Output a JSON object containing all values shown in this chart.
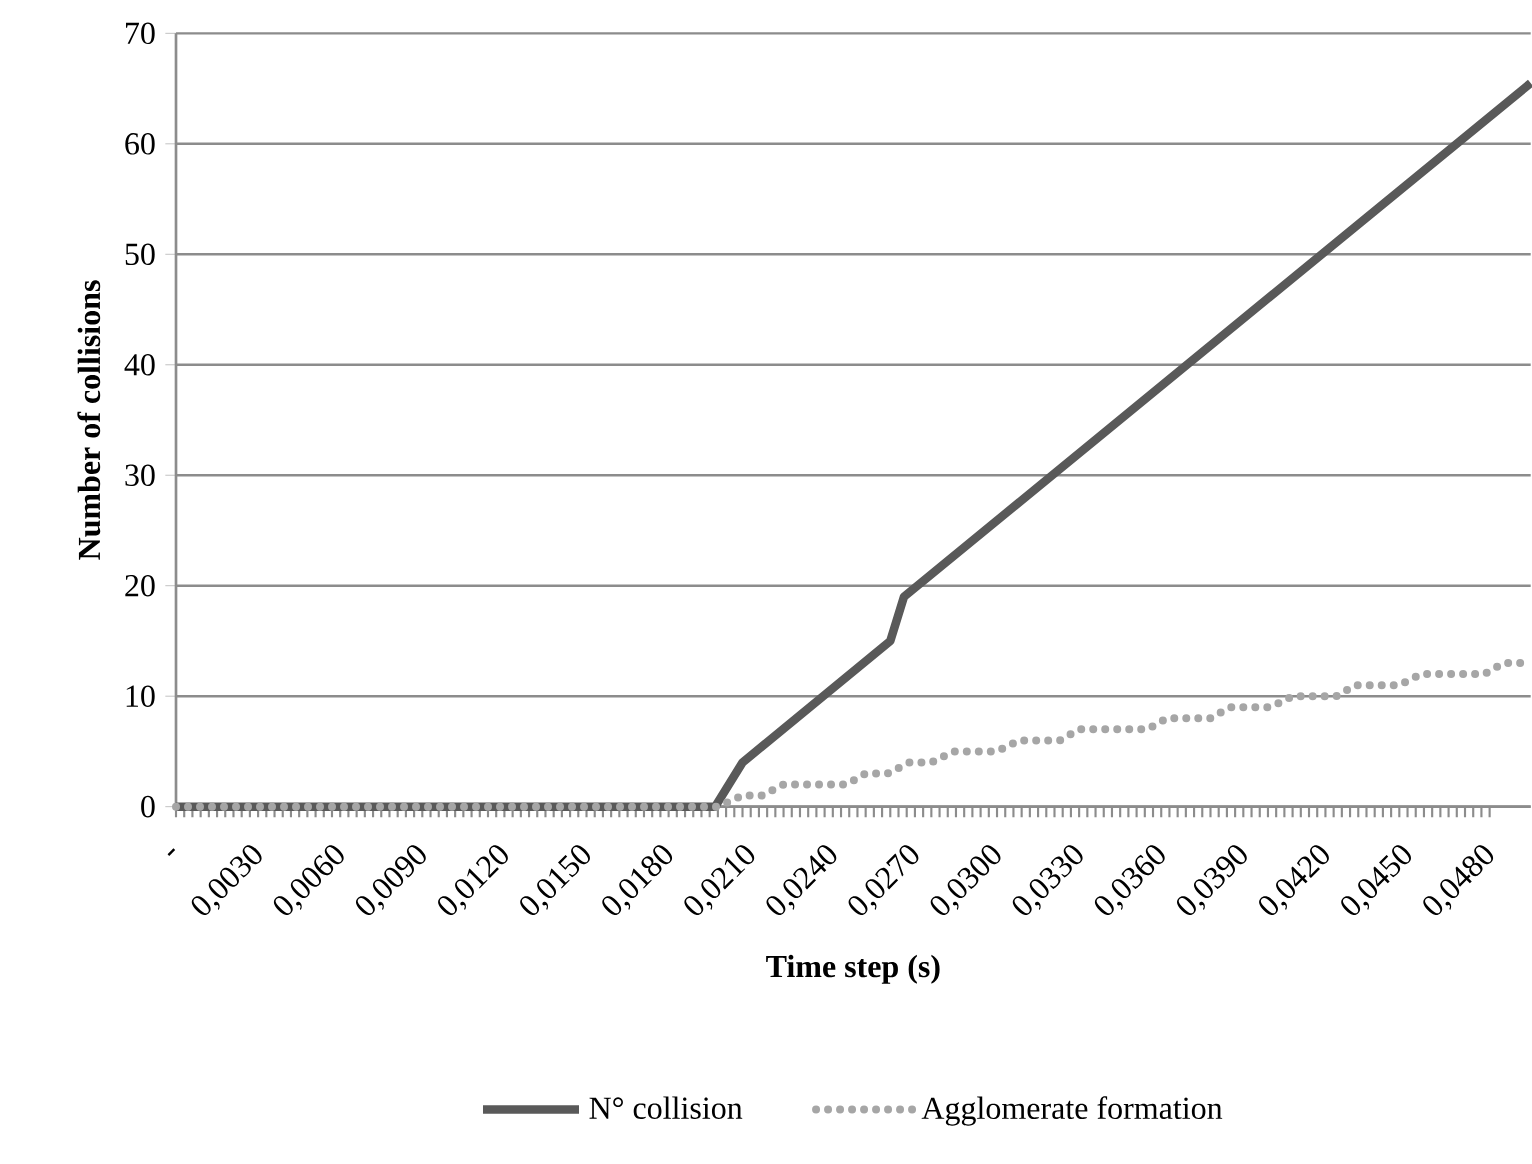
{
  "chart_data": {
    "type": "line",
    "xlabel": "Time step (s)",
    "ylabel": "Number of collisions",
    "series": [
      {
        "name": "N° collision",
        "color": "#595959",
        "line_style": "solid",
        "x": [
          0,
          0.0197,
          0.0207,
          0.0261,
          0.0266,
          0.0495
        ],
        "values": [
          0,
          0,
          4,
          15,
          19,
          65.5
        ]
      },
      {
        "name": "Agglomerate formation",
        "color": "#a6a6a6",
        "line_style": "dotted",
        "x": [
          0,
          0.0198,
          0.0207,
          0.0214,
          0.0222,
          0.0245,
          0.0252,
          0.026,
          0.0268,
          0.0276,
          0.0284,
          0.03,
          0.0308,
          0.0323,
          0.033,
          0.0355,
          0.0362,
          0.0378,
          0.0385,
          0.04,
          0.0408,
          0.0424,
          0.0431,
          0.0447,
          0.0455,
          0.0478,
          0.0485,
          0.0495
        ],
        "values": [
          0,
          0,
          1,
          1,
          2,
          2,
          3,
          3,
          4,
          4,
          5,
          5,
          6,
          6,
          7,
          7,
          8,
          8,
          9,
          9,
          10,
          10,
          11,
          11,
          12,
          12,
          13,
          13
        ]
      }
    ],
    "xlim": [
      0,
      0.0495
    ],
    "xticks": [
      {
        "value": 0,
        "label": "-"
      },
      {
        "value": 0.003,
        "label": "0,0030"
      },
      {
        "value": 0.006,
        "label": "0,0060"
      },
      {
        "value": 0.009,
        "label": "0,0090"
      },
      {
        "value": 0.012,
        "label": "0,0120"
      },
      {
        "value": 0.015,
        "label": "0,0150"
      },
      {
        "value": 0.018,
        "label": "0,0180"
      },
      {
        "value": 0.021,
        "label": "0,0210"
      },
      {
        "value": 0.024,
        "label": "0,0240"
      },
      {
        "value": 0.027,
        "label": "0,0270"
      },
      {
        "value": 0.03,
        "label": "0,0300"
      },
      {
        "value": 0.033,
        "label": "0,0330"
      },
      {
        "value": 0.036,
        "label": "0,0360"
      },
      {
        "value": 0.039,
        "label": "0,0390"
      },
      {
        "value": 0.042,
        "label": "0,0420"
      },
      {
        "value": 0.045,
        "label": "0,0450"
      },
      {
        "value": 0.048,
        "label": "0,0480"
      }
    ],
    "ylim": [
      0,
      70
    ],
    "yticks": [
      0,
      10,
      20,
      30,
      40,
      50,
      60,
      70
    ],
    "grid": "y",
    "legend": "bottom"
  }
}
